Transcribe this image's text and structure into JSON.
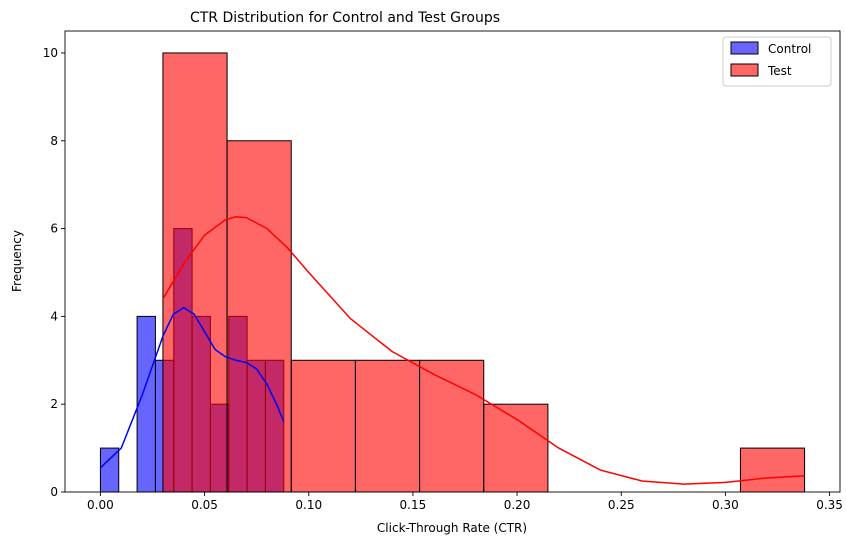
{
  "chart_data": {
    "type": "histogram",
    "title": "CTR Distribution for Control and Test Groups",
    "xlabel": "Click-Through Rate (CTR)",
    "ylabel": "Frequency",
    "xlim": [
      -0.017,
      0.355
    ],
    "ylim": [
      0,
      10.5
    ],
    "xticks": [
      0.0,
      0.05,
      0.1,
      0.15,
      0.2,
      0.25,
      0.3,
      0.35
    ],
    "xtick_labels": [
      "0.00",
      "0.05",
      "0.10",
      "0.15",
      "0.20",
      "0.25",
      "0.30",
      "0.35"
    ],
    "yticks": [
      0,
      2,
      4,
      6,
      8,
      10
    ],
    "ytick_labels": [
      "0",
      "2",
      "4",
      "6",
      "8",
      "10"
    ],
    "legend_position": "top-right",
    "series": [
      {
        "name": "Control",
        "color": "#0000ff",
        "bins": [
          {
            "x0": 0.0,
            "x1": 0.0088,
            "count": 1
          },
          {
            "x0": 0.0088,
            "x1": 0.0176,
            "count": 0
          },
          {
            "x0": 0.0176,
            "x1": 0.0264,
            "count": 4
          },
          {
            "x0": 0.0264,
            "x1": 0.0352,
            "count": 3
          },
          {
            "x0": 0.0352,
            "x1": 0.044,
            "count": 6
          },
          {
            "x0": 0.044,
            "x1": 0.0528,
            "count": 4
          },
          {
            "x0": 0.0528,
            "x1": 0.0616,
            "count": 2
          },
          {
            "x0": 0.0616,
            "x1": 0.0704,
            "count": 4
          },
          {
            "x0": 0.0704,
            "x1": 0.0792,
            "count": 3
          },
          {
            "x0": 0.0792,
            "x1": 0.088,
            "count": 3
          }
        ],
        "kde": {
          "x": [
            0.0,
            0.01,
            0.02,
            0.03,
            0.035,
            0.04,
            0.045,
            0.05,
            0.055,
            0.06,
            0.065,
            0.07,
            0.075,
            0.08,
            0.085,
            0.088
          ],
          "y": [
            0.55,
            1.0,
            2.2,
            3.55,
            4.05,
            4.2,
            4.05,
            3.65,
            3.25,
            3.08,
            3.0,
            2.95,
            2.8,
            2.45,
            1.95,
            1.6
          ]
        }
      },
      {
        "name": "Test",
        "color": "#ff0000",
        "bins": [
          {
            "x0": 0.03,
            "x1": 0.0608,
            "count": 10
          },
          {
            "x0": 0.0608,
            "x1": 0.0916,
            "count": 8
          },
          {
            "x0": 0.0916,
            "x1": 0.1224,
            "count": 3
          },
          {
            "x0": 0.1224,
            "x1": 0.1532,
            "count": 3
          },
          {
            "x0": 0.1532,
            "x1": 0.184,
            "count": 3
          },
          {
            "x0": 0.184,
            "x1": 0.2148,
            "count": 2
          },
          {
            "x0": 0.2148,
            "x1": 0.2456,
            "count": 0
          },
          {
            "x0": 0.2456,
            "x1": 0.2764,
            "count": 0
          },
          {
            "x0": 0.2764,
            "x1": 0.3072,
            "count": 0
          },
          {
            "x0": 0.3072,
            "x1": 0.338,
            "count": 1
          }
        ],
        "kde": {
          "x": [
            0.03,
            0.04,
            0.05,
            0.06,
            0.065,
            0.07,
            0.08,
            0.09,
            0.1,
            0.12,
            0.14,
            0.16,
            0.18,
            0.2,
            0.22,
            0.24,
            0.26,
            0.28,
            0.3,
            0.32,
            0.338
          ],
          "y": [
            4.4,
            5.2,
            5.85,
            6.2,
            6.27,
            6.25,
            6.0,
            5.55,
            5.0,
            3.95,
            3.2,
            2.68,
            2.22,
            1.65,
            1.0,
            0.5,
            0.25,
            0.18,
            0.22,
            0.32,
            0.37
          ]
        }
      }
    ]
  }
}
